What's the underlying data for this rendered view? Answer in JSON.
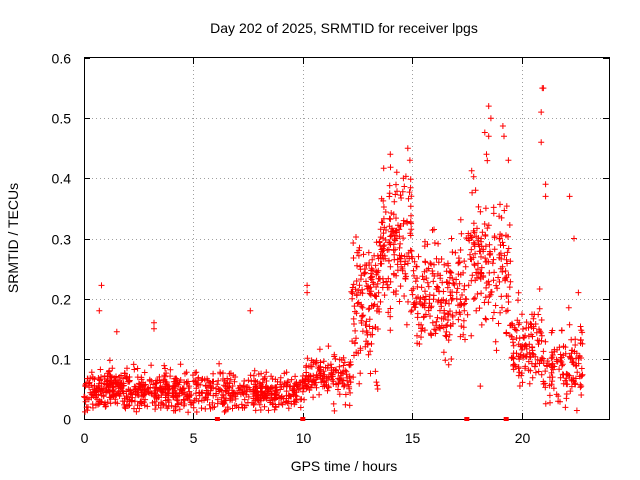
{
  "chart_data": {
    "type": "scatter",
    "title": "Day 202 of 2025, SRMTID for receiver lpgs",
    "xlabel": "GPS time / hours",
    "ylabel": "SRMTID / TECUs",
    "xlim": [
      0,
      24
    ],
    "ylim": [
      0,
      0.6
    ],
    "grid": true,
    "marker": "+",
    "color": "#ff0000",
    "x_ticks": [
      "0",
      "5",
      "10",
      "15",
      "20"
    ],
    "x_tick_values": [
      0,
      5,
      10,
      15,
      20
    ],
    "y_ticks": [
      "0",
      "0.1",
      "0.2",
      "0.3",
      "0.4",
      "0.5",
      "0.6"
    ],
    "y_tick_values": [
      0,
      0.1,
      0.2,
      0.3,
      0.4,
      0.5,
      0.6
    ],
    "bottom_markers": [
      6.1,
      10.0,
      17.5,
      19.3
    ],
    "series": [
      {
        "name": "SRMTID",
        "density_profile": [
          {
            "x_start": 0.0,
            "x_end": 2.0,
            "y_typical": 0.05,
            "spread": 0.03,
            "count": 180
          },
          {
            "x_start": 2.0,
            "x_end": 6.0,
            "y_typical": 0.045,
            "spread": 0.025,
            "count": 320
          },
          {
            "x_start": 6.0,
            "x_end": 10.0,
            "y_typical": 0.045,
            "spread": 0.025,
            "count": 300
          },
          {
            "x_start": 10.0,
            "x_end": 12.2,
            "y_typical": 0.07,
            "spread": 0.03,
            "count": 160
          },
          {
            "x_start": 12.2,
            "x_end": 13.5,
            "y_typical": 0.2,
            "spread": 0.09,
            "count": 140
          },
          {
            "x_start": 13.5,
            "x_end": 15.0,
            "y_typical": 0.3,
            "spread": 0.09,
            "count": 160
          },
          {
            "x_start": 15.0,
            "x_end": 17.5,
            "y_typical": 0.2,
            "spread": 0.08,
            "count": 210
          },
          {
            "x_start": 17.5,
            "x_end": 19.5,
            "y_typical": 0.25,
            "spread": 0.1,
            "count": 170
          },
          {
            "x_start": 19.5,
            "x_end": 21.0,
            "y_typical": 0.12,
            "spread": 0.05,
            "count": 120
          },
          {
            "x_start": 21.0,
            "x_end": 22.8,
            "y_typical": 0.09,
            "spread": 0.05,
            "count": 130
          }
        ],
        "outliers": [
          {
            "x": 0.8,
            "y": 0.222
          },
          {
            "x": 0.7,
            "y": 0.18
          },
          {
            "x": 1.5,
            "y": 0.145
          },
          {
            "x": 3.2,
            "y": 0.16
          },
          {
            "x": 3.2,
            "y": 0.15
          },
          {
            "x": 7.6,
            "y": 0.18
          },
          {
            "x": 10.2,
            "y": 0.222
          },
          {
            "x": 10.2,
            "y": 0.21
          },
          {
            "x": 14.0,
            "y": 0.44
          },
          {
            "x": 14.3,
            "y": 0.41
          },
          {
            "x": 14.6,
            "y": 0.4
          },
          {
            "x": 14.8,
            "y": 0.45
          },
          {
            "x": 14.9,
            "y": 0.43
          },
          {
            "x": 18.4,
            "y": 0.44
          },
          {
            "x": 18.5,
            "y": 0.52
          },
          {
            "x": 18.6,
            "y": 0.5
          },
          {
            "x": 18.5,
            "y": 0.47
          },
          {
            "x": 19.2,
            "y": 0.47
          },
          {
            "x": 19.4,
            "y": 0.43
          },
          {
            "x": 20.9,
            "y": 0.51
          },
          {
            "x": 20.9,
            "y": 0.46
          },
          {
            "x": 20.95,
            "y": 0.55
          },
          {
            "x": 21.0,
            "y": 0.55
          },
          {
            "x": 21.1,
            "y": 0.39
          },
          {
            "x": 21.1,
            "y": 0.37
          },
          {
            "x": 22.2,
            "y": 0.37
          },
          {
            "x": 22.4,
            "y": 0.3
          },
          {
            "x": 22.6,
            "y": 0.21
          }
        ]
      }
    ]
  }
}
